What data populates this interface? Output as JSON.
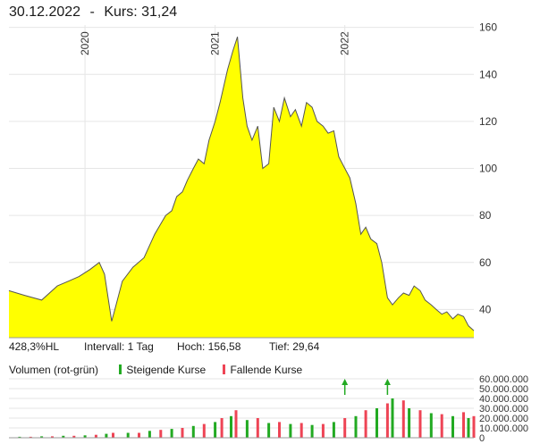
{
  "header": {
    "date": "30.12.2022",
    "separator": "-",
    "price_label": "Kurs: 31,24"
  },
  "stats": {
    "change": "428,3%HL",
    "interval": "Intervall: 1 Tag",
    "high": "Hoch:  156,58",
    "low": "Tief:   29,64"
  },
  "legend": {
    "title": "Volumen (rot-grün)",
    "rising": "Steigende Kurse",
    "falling": "Fallende Kurse",
    "rising_color": "#22aa22",
    "falling_color": "#ee4455"
  },
  "colors": {
    "area_fill": "#ffff00",
    "line": "#555555",
    "grid": "#e6e6e6",
    "up_arrow": "#22aa22"
  },
  "chart_data": [
    {
      "type": "area",
      "x_labels": [
        "2020",
        "2021",
        "2022"
      ],
      "x_label_dates": [
        "2020-01-01",
        "2021-01-01",
        "2022-01-01"
      ],
      "x_range": [
        "2019-06-01",
        "2022-12-30"
      ],
      "y_ticks": [
        40,
        60,
        80,
        100,
        120,
        140,
        160
      ],
      "y_tick_labels": [
        "40",
        "60",
        "80",
        "100",
        "120",
        "140",
        "160"
      ],
      "ylim": [
        28,
        161
      ],
      "grid": true,
      "series": [
        {
          "x": [
            "2019-06-01",
            "2019-07-15",
            "2019-09-01",
            "2019-10-15",
            "2019-11-15",
            "2019-12-15",
            "2020-01-15",
            "2020-02-10",
            "2020-02-25",
            "2020-03-16",
            "2020-03-25",
            "2020-04-15",
            "2020-05-15",
            "2020-06-15",
            "2020-07-15",
            "2020-08-15",
            "2020-09-01",
            "2020-09-15",
            "2020-10-01",
            "2020-10-15",
            "2020-11-01",
            "2020-11-15",
            "2020-12-01",
            "2020-12-15",
            "2021-01-01",
            "2021-01-15",
            "2021-02-05",
            "2021-02-20",
            "2021-03-05",
            "2021-03-20",
            "2021-04-01",
            "2021-04-15",
            "2021-05-01",
            "2021-05-15",
            "2021-06-01",
            "2021-06-15",
            "2021-07-01",
            "2021-07-15",
            "2021-08-01",
            "2021-08-15",
            "2021-09-01",
            "2021-09-15",
            "2021-10-01",
            "2021-10-15",
            "2021-11-01",
            "2021-11-15",
            "2021-12-01",
            "2021-12-15",
            "2022-01-01",
            "2022-01-15",
            "2022-02-01",
            "2022-02-15",
            "2022-03-01",
            "2022-03-15",
            "2022-04-01",
            "2022-04-15",
            "2022-05-01",
            "2022-05-15",
            "2022-06-01",
            "2022-06-15",
            "2022-07-01",
            "2022-07-15",
            "2022-08-01",
            "2022-08-15",
            "2022-09-01",
            "2022-09-15",
            "2022-10-01",
            "2022-10-15",
            "2022-11-01",
            "2022-11-15",
            "2022-12-01",
            "2022-12-15",
            "2022-12-30"
          ],
          "values": [
            48,
            46,
            44,
            50,
            52,
            54,
            57,
            60,
            55,
            35,
            40,
            52,
            58,
            62,
            72,
            80,
            82,
            88,
            90,
            95,
            100,
            104,
            102,
            112,
            120,
            128,
            142,
            150,
            156,
            130,
            118,
            112,
            118,
            100,
            102,
            126,
            120,
            130,
            122,
            125,
            118,
            128,
            126,
            120,
            118,
            115,
            116,
            105,
            100,
            96,
            85,
            72,
            75,
            70,
            68,
            60,
            45,
            42,
            45,
            47,
            46,
            50,
            48,
            44,
            42,
            40,
            38,
            39,
            36,
            38,
            37,
            33,
            31
          ]
        }
      ]
    },
    {
      "type": "bar",
      "title": "Volumen (rot-grün)",
      "y_ticks": [
        0,
        10000000,
        20000000,
        30000000,
        40000000,
        50000000,
        60000000
      ],
      "y_tick_labels": [
        "0",
        "10.000.000",
        "20.000.000",
        "30.000.000",
        "40.000.000",
        "50.000.000",
        "60.000.000"
      ],
      "ylim": [
        0,
        60000000
      ],
      "series": [
        {
          "name": "Steigende Kurse",
          "x": [
            "2019-07-01",
            "2019-09-01",
            "2019-11-01",
            "2020-01-01",
            "2020-03-01",
            "2020-05-01",
            "2020-07-01",
            "2020-09-01",
            "2020-11-01",
            "2021-01-01",
            "2021-02-15",
            "2021-04-01",
            "2021-06-01",
            "2021-08-01",
            "2021-10-01",
            "2021-12-01",
            "2022-02-01",
            "2022-04-01",
            "2022-05-15",
            "2022-07-01",
            "2022-09-01",
            "2022-11-01",
            "2022-12-15"
          ],
          "values": [
            1000000,
            1500000,
            2000000,
            2500000,
            4000000,
            5000000,
            7000000,
            9000000,
            12000000,
            16000000,
            22000000,
            18000000,
            15000000,
            14000000,
            13000000,
            16000000,
            22000000,
            30000000,
            40000000,
            30000000,
            25000000,
            22000000,
            20000000
          ]
        },
        {
          "name": "Fallende Kurse",
          "x": [
            "2019-08-01",
            "2019-10-01",
            "2019-12-01",
            "2020-02-01",
            "2020-03-20",
            "2020-06-01",
            "2020-08-01",
            "2020-10-01",
            "2020-12-01",
            "2021-01-20",
            "2021-03-01",
            "2021-05-01",
            "2021-07-01",
            "2021-09-01",
            "2021-11-01",
            "2022-01-01",
            "2022-03-01",
            "2022-05-01",
            "2022-06-15",
            "2022-08-01",
            "2022-10-01",
            "2022-12-01",
            "2022-12-30"
          ],
          "values": [
            1000000,
            1500000,
            2000000,
            3000000,
            5000000,
            5000000,
            8000000,
            10000000,
            14000000,
            20000000,
            28000000,
            20000000,
            16000000,
            15000000,
            14000000,
            20000000,
            28000000,
            35000000,
            38000000,
            28000000,
            24000000,
            26000000,
            22000000
          ]
        }
      ]
    }
  ]
}
